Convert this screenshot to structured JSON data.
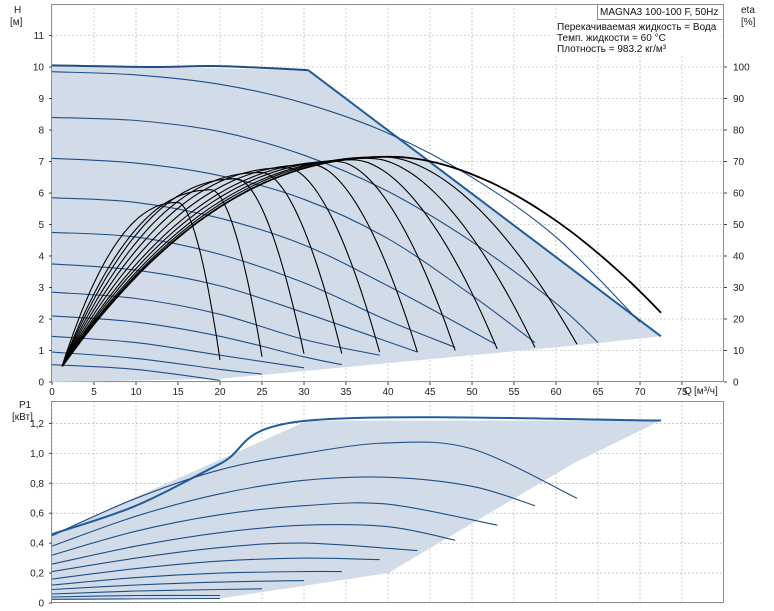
{
  "header": {
    "pump_model": "MAGNA3 100-100 F, 50Hz",
    "fluid_line": "Перекачиваемая жидкость = Вода",
    "temp_line": "Темп. жидкости = 60 °C",
    "density_line": "Плотность = 983.2 кг/м³"
  },
  "colors": {
    "fill": "#d2dce8",
    "envelope": "#1f5d9e",
    "speed_curve": "#1f4e85",
    "efficiency": "#000000",
    "grid": "#a8a8a8"
  },
  "chart_data": [
    {
      "type": "line",
      "name": "head",
      "ylabel": "H",
      "yunit": "[м]",
      "y2label": "eta",
      "y2unit": "[%]",
      "xlabel": "Q",
      "xunit": "[м³/ч]",
      "xlim": [
        0,
        80
      ],
      "ylim": [
        0,
        12
      ],
      "y2lim": [
        0,
        120
      ],
      "xticks": [
        "0",
        "5",
        "10",
        "15",
        "20",
        "25",
        "30",
        "35",
        "40",
        "45",
        "50",
        "55",
        "60",
        "65",
        "70",
        "75"
      ],
      "yticks": [
        "0",
        "1",
        "2",
        "3",
        "4",
        "5",
        "6",
        "7",
        "8",
        "9",
        "10",
        "11"
      ],
      "y2ticks": [
        "0",
        "10",
        "20",
        "30",
        "40",
        "50",
        "60",
        "70",
        "80",
        "90",
        "100"
      ],
      "grid": true,
      "operating_envelope": [
        [
          0,
          10.05
        ],
        [
          30.5,
          9.9
        ],
        [
          72.5,
          1.45
        ],
        [
          62,
          1.15
        ],
        [
          20,
          0.1
        ],
        [
          0,
          0
        ]
      ],
      "speed_curves": [
        [
          [
            0,
            10.05
          ],
          [
            12,
            10.0
          ],
          [
            20,
            10.03
          ],
          [
            30.5,
            9.9
          ]
        ],
        [
          [
            0,
            9.85
          ],
          [
            10,
            9.75
          ],
          [
            20,
            9.45
          ],
          [
            30,
            8.85
          ],
          [
            40,
            7.9
          ],
          [
            50,
            6.5
          ],
          [
            60,
            4.6
          ],
          [
            70,
            1.9
          ]
        ],
        [
          [
            0,
            8.4
          ],
          [
            10,
            8.3
          ],
          [
            20,
            7.95
          ],
          [
            30,
            7.2
          ],
          [
            40,
            6.05
          ],
          [
            50,
            4.45
          ],
          [
            60,
            2.5
          ],
          [
            65,
            1.25
          ]
        ],
        [
          [
            0,
            7.1
          ],
          [
            10,
            6.95
          ],
          [
            20,
            6.55
          ],
          [
            30,
            5.8
          ],
          [
            40,
            4.55
          ],
          [
            50,
            2.75
          ],
          [
            57.5,
            1.25
          ]
        ],
        [
          [
            0,
            5.85
          ],
          [
            10,
            5.7
          ],
          [
            20,
            5.2
          ],
          [
            30,
            4.35
          ],
          [
            40,
            3.05
          ],
          [
            52.8,
            1.2
          ]
        ],
        [
          [
            0,
            4.75
          ],
          [
            10,
            4.6
          ],
          [
            20,
            4.05
          ],
          [
            30,
            3.15
          ],
          [
            40,
            1.95
          ],
          [
            48,
            1.1
          ]
        ],
        [
          [
            0,
            3.75
          ],
          [
            10,
            3.55
          ],
          [
            20,
            3.05
          ],
          [
            30,
            2.2
          ],
          [
            43.5,
            0.95
          ]
        ],
        [
          [
            0,
            2.85
          ],
          [
            10,
            2.65
          ],
          [
            20,
            2.15
          ],
          [
            30,
            1.35
          ],
          [
            39,
            0.85
          ]
        ],
        [
          [
            0,
            2.1
          ],
          [
            10,
            1.9
          ],
          [
            20,
            1.45
          ],
          [
            30,
            0.8
          ],
          [
            34.5,
            0.55
          ]
        ],
        [
          [
            0,
            1.45
          ],
          [
            10,
            1.25
          ],
          [
            20,
            0.85
          ],
          [
            30,
            0.45
          ]
        ],
        [
          [
            0,
            0.95
          ],
          [
            10,
            0.75
          ],
          [
            20,
            0.4
          ],
          [
            25,
            0.25
          ]
        ],
        [
          [
            0,
            0.55
          ],
          [
            10,
            0.4
          ],
          [
            20,
            0.05
          ]
        ]
      ],
      "efficiency_curves": [
        {
          "apex": [
            40.5,
            71.5
          ],
          "end": [
            72.5,
            22
          ]
        },
        {
          "apex": [
            39.5,
            71.5
          ],
          "end": [
            62.5,
            12
          ]
        },
        {
          "apex": [
            38,
            71
          ],
          "end": [
            57.5,
            11
          ]
        },
        {
          "apex": [
            36,
            70.5
          ],
          "end": [
            53,
            10.5
          ]
        },
        {
          "apex": [
            34,
            70
          ],
          "end": [
            48,
            10
          ]
        },
        {
          "apex": [
            31,
            69
          ],
          "end": [
            43.5,
            9.5
          ]
        },
        {
          "apex": [
            28,
            68
          ],
          "end": [
            39,
            9.5
          ]
        },
        {
          "apex": [
            25,
            66.5
          ],
          "end": [
            34.5,
            9
          ]
        },
        {
          "apex": [
            22,
            64.5
          ],
          "end": [
            30,
            9
          ]
        },
        {
          "apex": [
            19,
            61
          ],
          "end": [
            25,
            8
          ]
        },
        {
          "apex": [
            15,
            57
          ],
          "end": [
            20,
            7
          ]
        }
      ]
    },
    {
      "type": "line",
      "name": "power",
      "ylabel": "P1",
      "yunit": "[кВт]",
      "xlim": [
        0,
        80
      ],
      "ylim": [
        0,
        1.35
      ],
      "yticks": [
        "0",
        "0,2",
        "0,4",
        "0,6",
        "0,8",
        "1,0",
        "1,2"
      ],
      "grid": true,
      "operating_envelope": [
        [
          0,
          0.46
        ],
        [
          30.5,
          1.22
        ],
        [
          72.5,
          1.22
        ],
        [
          62,
          0.93
        ],
        [
          40,
          0.2
        ],
        [
          20,
          0.03
        ],
        [
          0,
          0.02
        ]
      ],
      "power_curves": [
        [
          [
            0,
            0.46
          ],
          [
            10,
            0.65
          ],
          [
            20,
            0.93
          ],
          [
            30.5,
            1.22
          ],
          [
            72.5,
            1.22
          ]
        ],
        [
          [
            0,
            0.45
          ],
          [
            10,
            0.7
          ],
          [
            20,
            0.89
          ],
          [
            30,
            1.0
          ],
          [
            40,
            1.07
          ],
          [
            50,
            1.03
          ],
          [
            62.5,
            0.7
          ]
        ],
        [
          [
            0,
            0.38
          ],
          [
            10,
            0.58
          ],
          [
            20,
            0.73
          ],
          [
            30,
            0.82
          ],
          [
            40,
            0.84
          ],
          [
            50,
            0.78
          ],
          [
            57.5,
            0.65
          ]
        ],
        [
          [
            0,
            0.32
          ],
          [
            10,
            0.48
          ],
          [
            20,
            0.59
          ],
          [
            30,
            0.65
          ],
          [
            40,
            0.66
          ],
          [
            53,
            0.52
          ]
        ],
        [
          [
            0,
            0.26
          ],
          [
            10,
            0.38
          ],
          [
            20,
            0.47
          ],
          [
            30,
            0.52
          ],
          [
            40,
            0.51
          ],
          [
            48,
            0.42
          ]
        ],
        [
          [
            0,
            0.21
          ],
          [
            10,
            0.3
          ],
          [
            20,
            0.37
          ],
          [
            30,
            0.4
          ],
          [
            43.5,
            0.35
          ]
        ],
        [
          [
            0,
            0.16
          ],
          [
            10,
            0.23
          ],
          [
            20,
            0.28
          ],
          [
            30,
            0.3
          ],
          [
            39,
            0.29
          ]
        ],
        [
          [
            0,
            0.12
          ],
          [
            10,
            0.17
          ],
          [
            20,
            0.2
          ],
          [
            30,
            0.21
          ],
          [
            34.5,
            0.21
          ]
        ],
        [
          [
            0,
            0.09
          ],
          [
            10,
            0.12
          ],
          [
            20,
            0.14
          ],
          [
            30,
            0.15
          ]
        ],
        [
          [
            0,
            0.06
          ],
          [
            10,
            0.08
          ],
          [
            20,
            0.09
          ],
          [
            25,
            0.095
          ]
        ],
        [
          [
            0,
            0.04
          ],
          [
            10,
            0.05
          ],
          [
            20,
            0.05
          ]
        ],
        [
          [
            0,
            0.025
          ],
          [
            20,
            0.03
          ]
        ]
      ]
    }
  ]
}
